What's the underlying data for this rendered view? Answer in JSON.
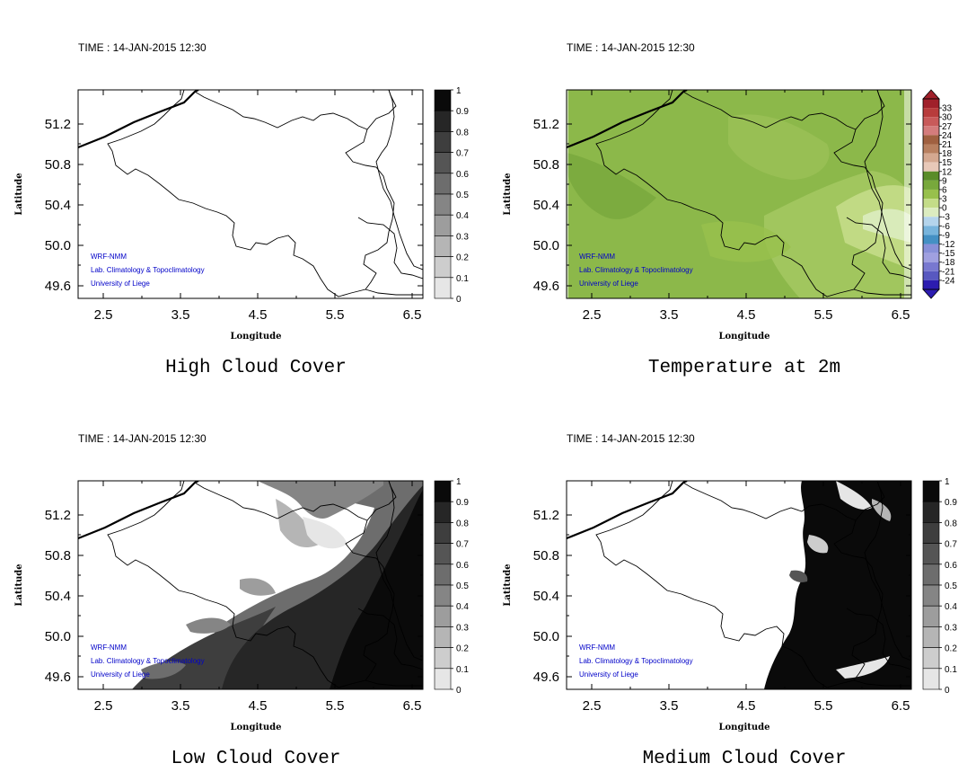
{
  "time_label": "TIME : 14-JAN-2015 12:30",
  "credits": [
    "WRF-NMM",
    "Lab. Climatology & Topoclimatology",
    "University of Liege"
  ],
  "axes": {
    "xlabel": "Longitude",
    "ylabel": "Latitude",
    "xticks": [
      "2.5",
      "3.5",
      "4.5",
      "5.5",
      "6.5"
    ],
    "yticks": [
      "51.2",
      "50.8",
      "50.4",
      "50.0",
      "49.6"
    ]
  },
  "panels": [
    {
      "title": "High Cloud Cover",
      "field": "high-cloud",
      "colorbar_labels": [
        "1",
        "0.9",
        "0.8",
        "0.7",
        "0.6",
        "0.5",
        "0.4",
        "0.3",
        "0.2",
        "0.1",
        "0"
      ],
      "colorbar_colors": [
        "#0a0a0a",
        "#262626",
        "#3e3e3e",
        "#555555",
        "#6d6d6d",
        "#858585",
        "#9d9d9d",
        "#b5b5b5",
        "#cdcdcd",
        "#e6e6e6",
        "#ffffff"
      ]
    },
    {
      "title": "Temperature at 2m",
      "field": "temperature",
      "colorbar_labels": [
        "33",
        "30",
        "27",
        "24",
        "21",
        "18",
        "15",
        "12",
        "9",
        "6",
        "3",
        "0",
        "-3",
        "-6",
        "-9",
        "-12",
        "-15",
        "-18",
        "-21",
        "-24"
      ],
      "colorbar_colors": [
        "#a0202a",
        "#b83c3c",
        "#c85a5a",
        "#d47c7c",
        "#a06040",
        "#b88060",
        "#d4a890",
        "#e8c8b8",
        "#5a8c28",
        "#78a83c",
        "#98c04c",
        "#c4dc88",
        "#dcecc0",
        "#b4d4ec",
        "#78b4dc",
        "#4490c4",
        "#8890d8",
        "#a0a0e0",
        "#7878d0",
        "#5858c0",
        "#2c1cb0"
      ]
    },
    {
      "title": "Low Cloud Cover",
      "field": "low-cloud",
      "colorbar_labels": [
        "1",
        "0.9",
        "0.8",
        "0.7",
        "0.6",
        "0.5",
        "0.4",
        "0.3",
        "0.2",
        "0.1",
        "0"
      ],
      "colorbar_colors": [
        "#0a0a0a",
        "#262626",
        "#3e3e3e",
        "#555555",
        "#6d6d6d",
        "#858585",
        "#9d9d9d",
        "#b5b5b5",
        "#cdcdcd",
        "#e6e6e6",
        "#ffffff"
      ]
    },
    {
      "title": "Medium Cloud Cover",
      "field": "medium-cloud",
      "colorbar_labels": [
        "1",
        "0.9",
        "0.8",
        "0.7",
        "0.6",
        "0.5",
        "0.4",
        "0.3",
        "0.2",
        "0.1",
        "0"
      ],
      "colorbar_colors": [
        "#0a0a0a",
        "#262626",
        "#3e3e3e",
        "#555555",
        "#6d6d6d",
        "#858585",
        "#9d9d9d",
        "#b5b5b5",
        "#cdcdcd",
        "#e6e6e6",
        "#ffffff"
      ]
    }
  ]
}
